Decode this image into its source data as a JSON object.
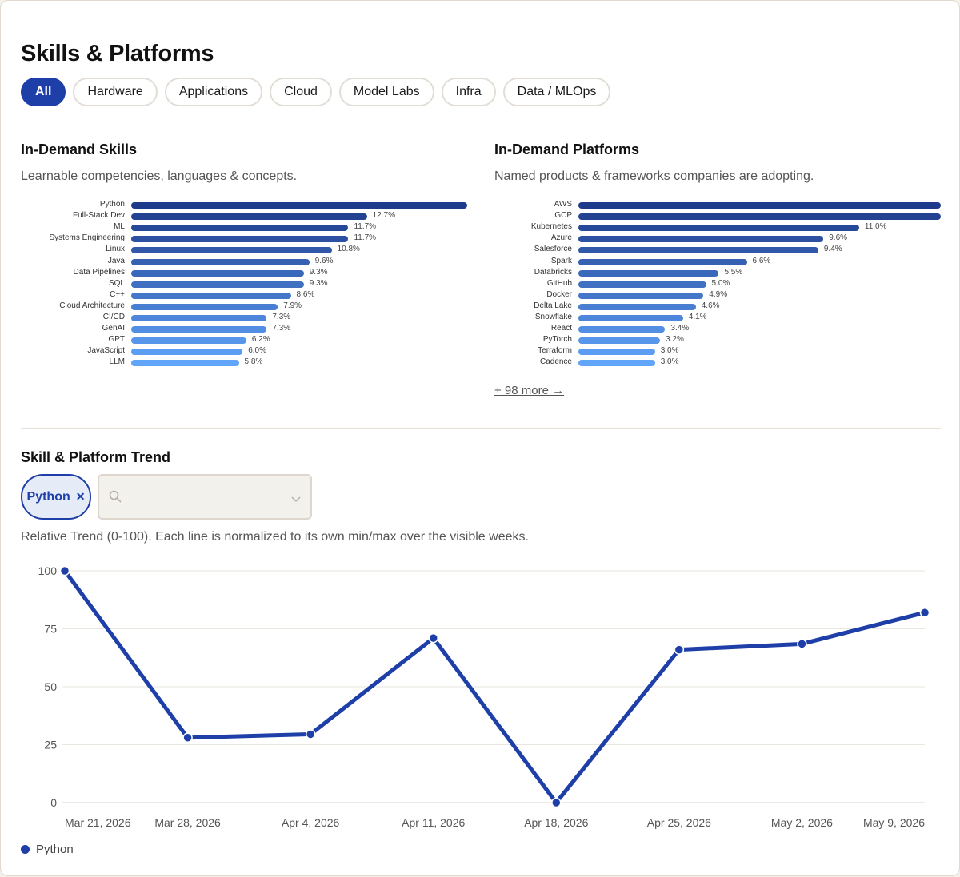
{
  "page_title": "Skills & Platforms",
  "filters": [
    {
      "label": "All",
      "active": true
    },
    {
      "label": "Hardware",
      "active": false
    },
    {
      "label": "Applications",
      "active": false
    },
    {
      "label": "Cloud",
      "active": false
    },
    {
      "label": "Model Labs",
      "active": false
    },
    {
      "label": "Infra",
      "active": false
    },
    {
      "label": "Data / MLOps",
      "active": false
    }
  ],
  "skills": {
    "title": "In-Demand Skills",
    "subtitle": "Learnable competencies, languages & concepts."
  },
  "platforms": {
    "title": "In-Demand Platforms",
    "subtitle": "Named products & frameworks companies are adopting.",
    "more_link": "+ 98 more →"
  },
  "trend": {
    "title": "Skill & Platform Trend",
    "selected_tag": "Python",
    "remove_tag_icon": "close-icon",
    "search_icon": "search-icon",
    "dropdown_icon": "chevron-down-icon",
    "description": "Relative Trend (0-100). Each line is normalized to its own min/max over the visible weeks.",
    "legend": [
      {
        "name": "Python",
        "color": "#1e3ea8"
      }
    ]
  },
  "colors": {
    "accent": "#1e3ea8",
    "bar_dark": "#1e3a8a",
    "bar_light": "#60a5fa"
  },
  "chart_data": [
    {
      "type": "bar",
      "orientation": "horizontal",
      "title": "In-Demand Skills",
      "categories": [
        "Python",
        "Full-Stack Dev",
        "ML",
        "Systems Engineering",
        "Linux",
        "Java",
        "Data Pipelines",
        "SQL",
        "C++",
        "Cloud Architecture",
        "CI/CD",
        "GenAI",
        "GPT",
        "JavaScript",
        "LLM"
      ],
      "values": [
        null,
        12.7,
        11.7,
        11.7,
        10.8,
        9.6,
        9.3,
        9.3,
        8.6,
        7.9,
        7.3,
        7.3,
        6.2,
        6.0,
        5.8
      ],
      "value_labels": [
        "",
        "12.7%",
        "11.7%",
        "11.7%",
        "10.8%",
        "9.6%",
        "9.3%",
        "9.3%",
        "8.6%",
        "7.9%",
        "7.3%",
        "7.3%",
        "6.2%",
        "6.0%",
        "5.8%"
      ],
      "unit": "%"
    },
    {
      "type": "bar",
      "orientation": "horizontal",
      "title": "In-Demand Platforms",
      "categories": [
        "AWS",
        "GCP",
        "Kubernetes",
        "Azure",
        "Salesforce",
        "Spark",
        "Databricks",
        "GitHub",
        "Docker",
        "Delta Lake",
        "Snowflake",
        "React",
        "PyTorch",
        "Terraform",
        "Cadence"
      ],
      "values": [
        null,
        null,
        11.0,
        9.6,
        9.4,
        6.6,
        5.5,
        5.0,
        4.9,
        4.6,
        4.1,
        3.4,
        3.2,
        3.0,
        3.0
      ],
      "value_labels": [
        "",
        "",
        "11.0%",
        "9.6%",
        "9.4%",
        "6.6%",
        "5.5%",
        "5.0%",
        "4.9%",
        "4.6%",
        "4.1%",
        "3.4%",
        "3.2%",
        "3.0%",
        "3.0%"
      ],
      "unit": "%"
    },
    {
      "type": "line",
      "title": "",
      "x": [
        "Mar 21, 2026",
        "Mar 28, 2026",
        "Apr 4, 2026",
        "Apr 11, 2026",
        "Apr 18, 2026",
        "Apr 25, 2026",
        "May 2, 2026",
        "May 9, 2026"
      ],
      "series": [
        {
          "name": "Python",
          "values": [
            100,
            28,
            29.5,
            71,
            0,
            66,
            68.5,
            82
          ]
        }
      ],
      "ylim": [
        0,
        100
      ],
      "yticks": [
        0,
        25,
        50,
        75,
        100
      ],
      "grid": true,
      "legend": "bottom-left"
    }
  ]
}
